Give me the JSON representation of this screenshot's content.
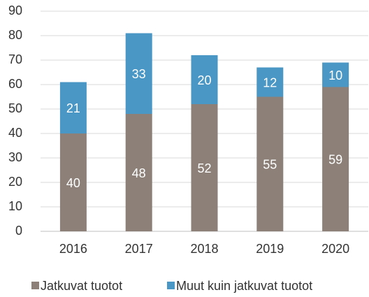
{
  "chart_data": {
    "type": "stacked_bar",
    "categories": [
      "2016",
      "2017",
      "2018",
      "2019",
      "2020"
    ],
    "series": [
      {
        "name": "Jatkuvat tuotot",
        "color": "#8c8078",
        "values": [
          40,
          48,
          52,
          55,
          59
        ]
      },
      {
        "name": "Muut kuin jatkuvat tuotot",
        "color": "#4a96c4",
        "values": [
          21,
          33,
          20,
          12,
          10
        ]
      }
    ],
    "ylim": [
      0,
      90
    ],
    "yticks": [
      0,
      10,
      20,
      30,
      40,
      50,
      60,
      70,
      80,
      90
    ],
    "grid": true,
    "legend": "bottom"
  }
}
